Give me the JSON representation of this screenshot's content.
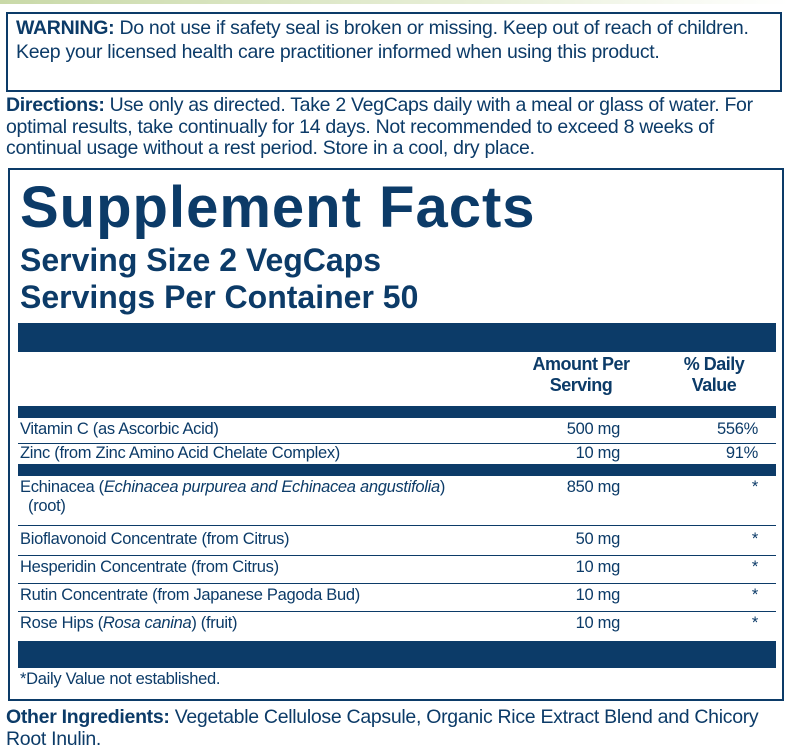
{
  "warning": {
    "label": "WARNING:",
    "text": " Do not use if safety seal is broken or missing. Keep out of reach of children. Keep your licensed health care practitioner informed when using this product."
  },
  "directions": {
    "label": "Directions:",
    "text": " Use only as directed. Take 2 VegCaps daily with a meal or glass of water. For optimal results, take continually for 14 days. Not recommended to exceed 8 weeks of continual usage without a rest period. Store in a cool, dry place."
  },
  "facts": {
    "title": "Supplement Facts",
    "serving_size": "Serving Size 2 VegCaps",
    "servings_per_container": "Servings Per Container 50",
    "col_amount": "Amount Per Serving",
    "col_dv": "% Daily Value",
    "rows": [
      {
        "name": "Vitamin C (as Ascorbic Acid)",
        "amount": "500 mg",
        "dv": "556%"
      },
      {
        "name": "Zinc (from Zinc Amino Acid Chelate Complex)",
        "amount": "10 mg",
        "dv": "91%"
      },
      {
        "name_pre": "Echinacea (",
        "name_italic": "Echinacea purpurea and Echinacea angustifolia",
        "name_post": ")",
        "name_line2": "(root)",
        "amount": "850 mg",
        "dv": "*"
      },
      {
        "name": "Bioflavonoid Concentrate (from Citrus)",
        "amount": "50 mg",
        "dv": "*"
      },
      {
        "name": "Hesperidin Concentrate (from Citrus)",
        "amount": "10 mg",
        "dv": "*"
      },
      {
        "name": "Rutin Concentrate (from Japanese Pagoda Bud)",
        "amount": "10 mg",
        "dv": "*"
      },
      {
        "name_pre": "Rose Hips (",
        "name_italic": "Rosa canina",
        "name_post": ") (fruit)",
        "amount": "10 mg",
        "dv": "*"
      }
    ],
    "footnote": "*Daily Value not established."
  },
  "other": {
    "label": "Other Ingredients:",
    "text": " Vegetable Cellulose Capsule, Organic Rice Extract Blend and Chicory Root Inulin."
  }
}
